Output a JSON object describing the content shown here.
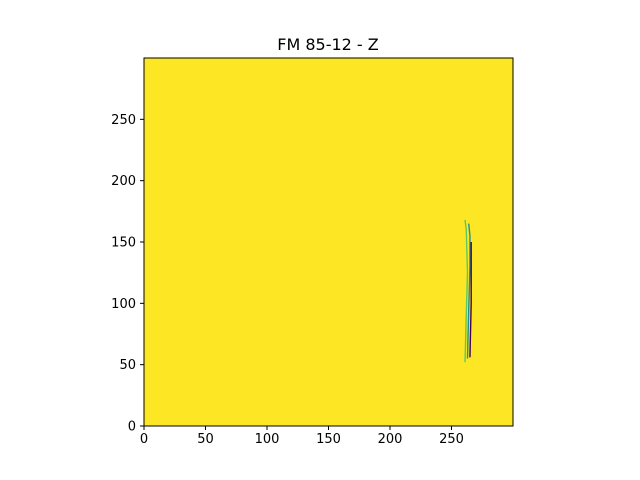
{
  "chart_data": {
    "type": "heatmap",
    "title": "FM 85-12 - Z",
    "xlabel": "",
    "ylabel": "",
    "xlim": [
      0,
      300
    ],
    "ylim": [
      0,
      300
    ],
    "x_ticks": [
      0,
      50,
      100,
      150,
      200,
      250
    ],
    "y_ticks": [
      0,
      50,
      100,
      150,
      200,
      250
    ],
    "grid": false,
    "legend": "none",
    "colors": {
      "background_cell": "#fde725",
      "anomaly_low": "#21918c",
      "anomaly_mid": "#5ec962",
      "anomaly_dark": "#440154"
    },
    "anomaly_strokes": [
      {
        "x": [
          261,
          262,
          263,
          262,
          261
        ],
        "y": [
          52,
          90,
          125,
          160,
          168
        ],
        "color": "#5ec962"
      },
      {
        "x": [
          263,
          264,
          265,
          265,
          264
        ],
        "y": [
          55,
          95,
          130,
          155,
          165
        ],
        "color": "#21918c"
      },
      {
        "x": [
          265,
          266,
          266,
          266
        ],
        "y": [
          56,
          100,
          140,
          150
        ],
        "color": "#440154"
      }
    ]
  }
}
